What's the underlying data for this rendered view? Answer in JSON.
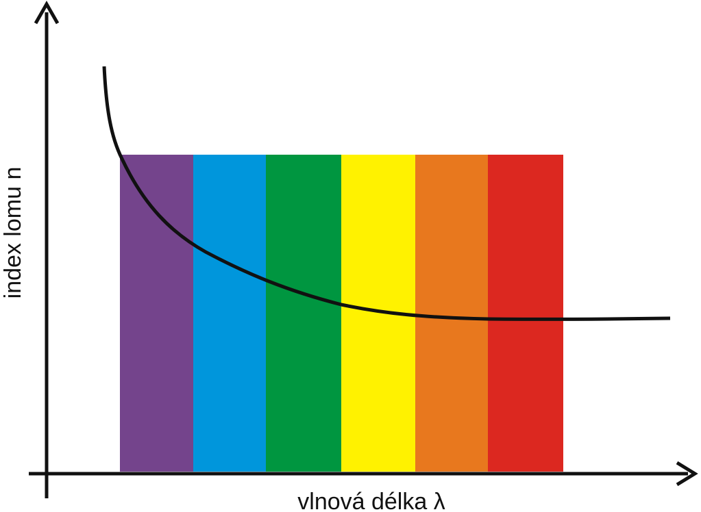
{
  "axes": {
    "y_label": "index lomu n",
    "x_label": "vlnová délka λ"
  }
}
